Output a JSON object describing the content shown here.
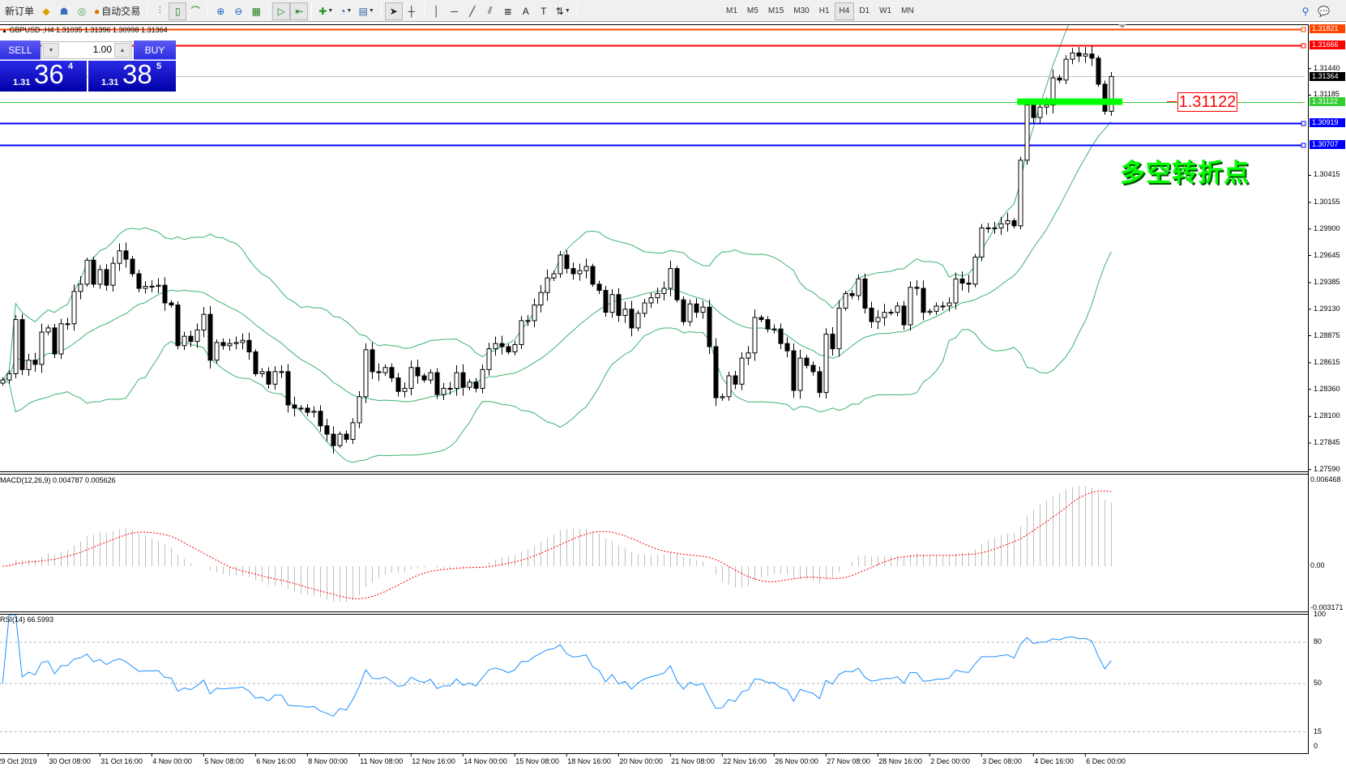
{
  "toolbar": {
    "new_order": "新订单",
    "auto_trading": "自动交易",
    "timeframes": [
      "M1",
      "M5",
      "M15",
      "M30",
      "H1",
      "H4",
      "D1",
      "W1",
      "MN"
    ],
    "active_timeframe": "H4"
  },
  "chart": {
    "title": "GBPUSD-,H4  1.31035 1.31396 1.30998 1.31364"
  },
  "trade_panel": {
    "sell_label": "SELL",
    "buy_label": "BUY",
    "volume": "1.00",
    "sell_price": {
      "prefix": "1.31",
      "big": "36",
      "pip": "4"
    },
    "buy_price": {
      "prefix": "1.31",
      "big": "38",
      "pip": "5"
    }
  },
  "annotation": {
    "price_label": "1.31122",
    "text": "多空转折点"
  },
  "price_axis": {
    "ticks": [
      "1.31440",
      "1.31185",
      "1.30415",
      "1.30155",
      "1.29900",
      "1.29645",
      "1.29385",
      "1.29130",
      "1.28875",
      "1.28615",
      "1.28360",
      "1.28100",
      "1.27845",
      "1.27590"
    ],
    "tags": [
      {
        "value": "1.31821",
        "color": "#ff4500"
      },
      {
        "value": "1.31666",
        "color": "#ff0000"
      },
      {
        "value": "1.31364",
        "color": "#000000"
      },
      {
        "value": "1.31122",
        "color": "#32cd32"
      },
      {
        "value": "1.30919",
        "color": "#0000ff"
      },
      {
        "value": "1.30707",
        "color": "#0000ff"
      }
    ]
  },
  "macd": {
    "label": "MACD(12,26,9) 0.004787 0.005626",
    "axis": [
      "0.006468",
      "0.00",
      "-0.003171"
    ]
  },
  "rsi": {
    "label": "RSI(14) 66.5993",
    "axis": [
      "100",
      "80",
      "50",
      "15",
      "0"
    ],
    "levels": [
      80,
      50,
      15
    ]
  },
  "time_axis": [
    "29 Oct 2019",
    "30 Oct 08:00",
    "31 Oct 16:00",
    "4 Nov 00:00",
    "5 Nov 08:00",
    "6 Nov 16:00",
    "8 Nov 00:00",
    "11 Nov 08:00",
    "12 Nov 16:00",
    "14 Nov 00:00",
    "15 Nov 08:00",
    "18 Nov 16:00",
    "20 Nov 00:00",
    "21 Nov 08:00",
    "22 Nov 16:00",
    "26 Nov 00:00",
    "27 Nov 08:00",
    "28 Nov 16:00",
    "2 Dec 00:00",
    "3 Dec 08:00",
    "4 Dec 16:00",
    "6 Dec 00:00"
  ],
  "colors": {
    "bollinger": "#3cb371",
    "macd_histogram": "#c0c0c0",
    "macd_signal": "#ff0000",
    "rsi_line": "#1e90ff",
    "support_zone": "#00ff00",
    "bid_line": "#c0c0c0"
  },
  "chart_data": {
    "type": "candlestick",
    "symbol": "GBPUSD",
    "timeframe": "H4",
    "y_range": [
      1.2759,
      1.31821
    ],
    "close": [
      1.2845,
      1.2851,
      1.2903,
      1.2855,
      1.2864,
      1.286,
      1.2891,
      1.2895,
      1.287,
      1.2899,
      1.2899,
      1.293,
      1.2937,
      1.296,
      1.2937,
      1.2951,
      1.2936,
      1.2957,
      1.2969,
      1.2961,
      1.2947,
      1.2933,
      1.2935,
      1.2935,
      1.2936,
      1.2919,
      1.2917,
      1.2878,
      1.2887,
      1.2882,
      1.2893,
      1.2908,
      1.2864,
      1.2881,
      1.2878,
      1.288,
      1.2881,
      1.2883,
      1.2872,
      1.2851,
      1.2853,
      1.2841,
      1.2853,
      1.2853,
      1.2821,
      1.2818,
      1.2818,
      1.2814,
      1.2815,
      1.2801,
      1.2793,
      1.2782,
      1.2793,
      1.2788,
      1.2804,
      1.2829,
      1.2874,
      1.2853,
      1.2852,
      1.2857,
      1.2847,
      1.2834,
      1.2837,
      1.2857,
      1.2849,
      1.2845,
      1.2852,
      1.2831,
      1.2837,
      1.2837,
      1.2852,
      1.2838,
      1.2843,
      1.2837,
      1.2855,
      1.2875,
      1.288,
      1.2877,
      1.2872,
      1.2879,
      1.2902,
      1.2902,
      1.2917,
      1.2929,
      1.2943,
      1.2947,
      1.2965,
      1.2952,
      1.2947,
      1.295,
      1.2954,
      1.2937,
      1.2931,
      1.291,
      1.2927,
      1.2907,
      1.2913,
      1.2895,
      1.2909,
      1.2919,
      1.2924,
      1.2928,
      1.2933,
      1.2952,
      1.2922,
      1.2901,
      1.2918,
      1.291,
      1.2915,
      1.2877,
      1.2828,
      1.2829,
      1.2849,
      1.2841,
      1.2866,
      1.2871,
      1.2905,
      1.2903,
      1.2894,
      1.2894,
      1.288,
      1.2873,
      1.2835,
      1.2866,
      1.2859,
      1.2853,
      1.2833,
      1.2889,
      1.2875,
      1.2914,
      1.2928,
      1.2926,
      1.2942,
      1.2914,
      1.2901,
      1.2905,
      1.291,
      1.291,
      1.2916,
      1.2898,
      1.2934,
      1.2933,
      1.291,
      1.2911,
      1.2916,
      1.2916,
      1.2919,
      1.2942,
      1.2938,
      1.2937,
      1.2963,
      1.2991,
      1.2991,
      1.2991,
      1.2995,
      1.2998,
      1.2993,
      1.3056,
      1.3109,
      1.3097,
      1.3107,
      1.3109,
      1.3135,
      1.3133,
      1.3153,
      1.3159,
      1.3156,
      1.3158,
      1.3154,
      1.3129,
      1.3103,
      1.31364
    ],
    "horizontal_lines": [
      {
        "price": 1.31821,
        "color": "#ff4500",
        "width": 2
      },
      {
        "price": 1.31666,
        "color": "#ff0000",
        "width": 2
      },
      {
        "price": 1.31364,
        "color": "#c0c0c0",
        "width": 1
      },
      {
        "price": 1.31122,
        "color": "#32cd32",
        "width": 1
      },
      {
        "price": 1.30919,
        "color": "#0000ff",
        "width": 2
      },
      {
        "price": 1.30707,
        "color": "#0000ff",
        "width": 2
      }
    ],
    "support_zone_price": 1.31122,
    "indicators": {
      "bollinger": {
        "period": 20,
        "deviation": 2
      },
      "macd": {
        "fast": 12,
        "slow": 26,
        "signal": 9,
        "range": [
          -0.003171,
          0.006468
        ]
      },
      "rsi": {
        "period": 14,
        "range": [
          0,
          100
        ]
      }
    }
  }
}
